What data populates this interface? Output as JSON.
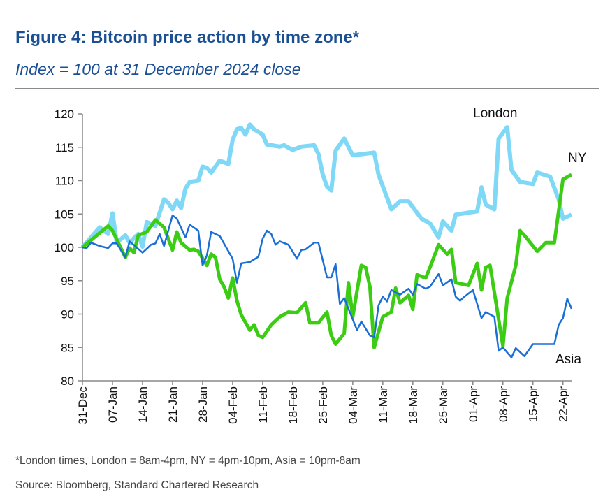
{
  "header": {
    "title": "Figure 4: Bitcoin price action by time zone*",
    "subtitle": "Index = 100 at 31 December 2024 close"
  },
  "footer": {
    "note": "*London times, London = 8am-4pm, NY = 4pm-10pm, Asia = 10pm-8am",
    "source": "Source: Bloomberg, Standard Chartered Research"
  },
  "chart_data": {
    "type": "line",
    "title": "Figure 4: Bitcoin price action by time zone*",
    "subtitle": "Index = 100 at 31 December 2024 close",
    "xlabel": "",
    "ylabel": "",
    "ylim": [
      80,
      120
    ],
    "yticks": [
      80,
      85,
      90,
      95,
      100,
      105,
      110,
      115,
      120
    ],
    "xlim": [
      "2024-12-31",
      "2025-04-24"
    ],
    "xticks": [
      "2024-12-31",
      "2025-01-07",
      "2025-01-14",
      "2025-01-21",
      "2025-01-28",
      "2025-02-04",
      "2025-02-11",
      "2025-02-18",
      "2025-02-25",
      "2025-03-04",
      "2025-03-11",
      "2025-03-18",
      "2025-03-25",
      "2025-04-01",
      "2025-04-08",
      "2025-04-15",
      "2025-04-22"
    ],
    "xtick_labels": [
      "31-Dec",
      "07-Jan",
      "14-Jan",
      "21-Jan",
      "28-Jan",
      "04-Feb",
      "11-Feb",
      "18-Feb",
      "25-Feb",
      "04-Mar",
      "11-Mar",
      "18-Mar",
      "25-Mar",
      "01-Apr",
      "08-Apr",
      "15-Apr",
      "22-Apr"
    ],
    "grid": false,
    "legend": "inline labels",
    "series": [
      {
        "name": "London",
        "color": "#7fd8f6",
        "points": [
          [
            "2024-12-31",
            100
          ],
          [
            "2025-01-04",
            103
          ],
          [
            "2025-01-06",
            102
          ],
          [
            "2025-01-07",
            105.1
          ],
          [
            "2025-01-08",
            100.7
          ],
          [
            "2025-01-10",
            101.8
          ],
          [
            "2025-01-11",
            100.7
          ],
          [
            "2025-01-13",
            102
          ],
          [
            "2025-01-14",
            100.1
          ],
          [
            "2025-01-15",
            103.8
          ],
          [
            "2025-01-17",
            103.2
          ],
          [
            "2025-01-19",
            107.2
          ],
          [
            "2025-01-20",
            106.7
          ],
          [
            "2025-01-21",
            105.7
          ],
          [
            "2025-01-22",
            107
          ],
          [
            "2025-01-23",
            105.9
          ],
          [
            "2025-01-24",
            108.8
          ],
          [
            "2025-01-25",
            109.8
          ],
          [
            "2025-01-27",
            110
          ],
          [
            "2025-01-28",
            112.1
          ],
          [
            "2025-01-29",
            111.9
          ],
          [
            "2025-01-30",
            111.2
          ],
          [
            "2025-02-01",
            113
          ],
          [
            "2025-02-03",
            112.5
          ],
          [
            "2025-02-04",
            116.1
          ],
          [
            "2025-02-05",
            117.7
          ],
          [
            "2025-02-06",
            117.9
          ],
          [
            "2025-02-07",
            116.9
          ],
          [
            "2025-02-08",
            118.4
          ],
          [
            "2025-02-09",
            117.7
          ],
          [
            "2025-02-11",
            116.9
          ],
          [
            "2025-02-12",
            115.4
          ],
          [
            "2025-02-15",
            115.1
          ],
          [
            "2025-02-16",
            115.3
          ],
          [
            "2025-02-18",
            114.6
          ],
          [
            "2025-02-20",
            115.1
          ],
          [
            "2025-02-23",
            115.3
          ],
          [
            "2025-02-24",
            114
          ],
          [
            "2025-02-25",
            110.9
          ],
          [
            "2025-02-26",
            109.1
          ],
          [
            "2025-02-27",
            108.5
          ],
          [
            "2025-02-28",
            114.5
          ],
          [
            "2025-03-02",
            116.3
          ],
          [
            "2025-03-04",
            113.8
          ],
          [
            "2025-03-09",
            114.2
          ],
          [
            "2025-03-10",
            110.9
          ],
          [
            "2025-03-13",
            105.7
          ],
          [
            "2025-03-15",
            106.9
          ],
          [
            "2025-03-17",
            106.9
          ],
          [
            "2025-03-20",
            104.3
          ],
          [
            "2025-03-22",
            103.6
          ],
          [
            "2025-03-24",
            101.5
          ],
          [
            "2025-03-25",
            103.9
          ],
          [
            "2025-03-27",
            102.5
          ],
          [
            "2025-03-28",
            104.9
          ],
          [
            "2025-04-02",
            105.4
          ],
          [
            "2025-04-03",
            109
          ],
          [
            "2025-04-04",
            106.4
          ],
          [
            "2025-04-06",
            105.7
          ],
          [
            "2025-04-07",
            116.3
          ],
          [
            "2025-04-09",
            118
          ],
          [
            "2025-04-10",
            111.6
          ],
          [
            "2025-04-12",
            109.8
          ],
          [
            "2025-04-15",
            109.5
          ],
          [
            "2025-04-16",
            111.2
          ],
          [
            "2025-04-19",
            110.6
          ],
          [
            "2025-04-21",
            107.2
          ],
          [
            "2025-04-22",
            104.3
          ],
          [
            "2025-04-24",
            104.9
          ]
        ]
      },
      {
        "name": "NY",
        "color": "#3ccc14",
        "points": [
          [
            "2024-12-31",
            100
          ],
          [
            "2025-01-06",
            103.2
          ],
          [
            "2025-01-07",
            102.5
          ],
          [
            "2025-01-10",
            98.5
          ],
          [
            "2025-01-11",
            99.9
          ],
          [
            "2025-01-12",
            99.2
          ],
          [
            "2025-01-13",
            101.8
          ],
          [
            "2025-01-15",
            102.3
          ],
          [
            "2025-01-17",
            104.1
          ],
          [
            "2025-01-19",
            103
          ],
          [
            "2025-01-21",
            99.6
          ],
          [
            "2025-01-22",
            102.3
          ],
          [
            "2025-01-23",
            100.7
          ],
          [
            "2025-01-25",
            99.6
          ],
          [
            "2025-01-26",
            99.7
          ],
          [
            "2025-01-27",
            99.4
          ],
          [
            "2025-01-29",
            97.3
          ],
          [
            "2025-01-30",
            99
          ],
          [
            "2025-01-31",
            98.5
          ],
          [
            "2025-02-01",
            95.2
          ],
          [
            "2025-02-02",
            94.1
          ],
          [
            "2025-02-03",
            92.4
          ],
          [
            "2025-02-04",
            95.4
          ],
          [
            "2025-02-05",
            92
          ],
          [
            "2025-02-06",
            89.9
          ],
          [
            "2025-02-08",
            87.6
          ],
          [
            "2025-02-09",
            88.4
          ],
          [
            "2025-02-10",
            86.8
          ],
          [
            "2025-02-11",
            86.5
          ],
          [
            "2025-02-13",
            88.4
          ],
          [
            "2025-02-15",
            89.6
          ],
          [
            "2025-02-17",
            90.3
          ],
          [
            "2025-02-19",
            90.2
          ],
          [
            "2025-02-21",
            91.7
          ],
          [
            "2025-02-22",
            88.7
          ],
          [
            "2025-02-24",
            88.7
          ],
          [
            "2025-02-26",
            90.3
          ],
          [
            "2025-02-27",
            86.8
          ],
          [
            "2025-02-28",
            85.5
          ],
          [
            "2025-03-02",
            87.1
          ],
          [
            "2025-03-03",
            94.7
          ],
          [
            "2025-03-04",
            89.6
          ],
          [
            "2025-03-06",
            97.3
          ],
          [
            "2025-03-07",
            97
          ],
          [
            "2025-03-08",
            94.1
          ],
          [
            "2025-03-09",
            85
          ],
          [
            "2025-03-11",
            89.6
          ],
          [
            "2025-03-13",
            90.3
          ],
          [
            "2025-03-14",
            93.9
          ],
          [
            "2025-03-15",
            91.7
          ],
          [
            "2025-03-17",
            92.8
          ],
          [
            "2025-03-18",
            90.7
          ],
          [
            "2025-03-19",
            95.9
          ],
          [
            "2025-03-21",
            95.4
          ],
          [
            "2025-03-22",
            97
          ],
          [
            "2025-03-24",
            100.4
          ],
          [
            "2025-03-26",
            99
          ],
          [
            "2025-03-27",
            99.7
          ],
          [
            "2025-03-28",
            94.7
          ],
          [
            "2025-03-31",
            94.3
          ],
          [
            "2025-04-02",
            97.6
          ],
          [
            "2025-04-03",
            93.6
          ],
          [
            "2025-04-04",
            97
          ],
          [
            "2025-04-05",
            97.3
          ],
          [
            "2025-04-08",
            85.2
          ],
          [
            "2025-04-09",
            92.4
          ],
          [
            "2025-04-11",
            97.3
          ],
          [
            "2025-04-12",
            102.5
          ],
          [
            "2025-04-13",
            101.8
          ],
          [
            "2025-04-16",
            99.4
          ],
          [
            "2025-04-18",
            100.7
          ],
          [
            "2025-04-20",
            100.7
          ],
          [
            "2025-04-22",
            110.2
          ],
          [
            "2025-04-24",
            110.9
          ]
        ]
      },
      {
        "name": "Asia",
        "color": "#1a6fd6",
        "points": [
          [
            "2024-12-31",
            100
          ],
          [
            "2025-01-01",
            99.9
          ],
          [
            "2025-01-02",
            100.7
          ],
          [
            "2025-01-04",
            100.2
          ],
          [
            "2025-01-06",
            99.9
          ],
          [
            "2025-01-07",
            100.6
          ],
          [
            "2025-01-08",
            100.6
          ],
          [
            "2025-01-10",
            98.5
          ],
          [
            "2025-01-11",
            100.9
          ],
          [
            "2025-01-14",
            99.2
          ],
          [
            "2025-01-16",
            100.4
          ],
          [
            "2025-01-17",
            100.6
          ],
          [
            "2025-01-18",
            102
          ],
          [
            "2025-01-19",
            100.2
          ],
          [
            "2025-01-21",
            104.8
          ],
          [
            "2025-01-22",
            104.3
          ],
          [
            "2025-01-24",
            101.5
          ],
          [
            "2025-01-25",
            103.4
          ],
          [
            "2025-01-27",
            102.5
          ],
          [
            "2025-01-28",
            97.3
          ],
          [
            "2025-01-29",
            98.8
          ],
          [
            "2025-01-30",
            102.3
          ],
          [
            "2025-02-01",
            101.7
          ],
          [
            "2025-02-04",
            98.3
          ],
          [
            "2025-02-05",
            94.7
          ],
          [
            "2025-02-06",
            97.6
          ],
          [
            "2025-02-08",
            97.8
          ],
          [
            "2025-02-10",
            98.6
          ],
          [
            "2025-02-11",
            101.3
          ],
          [
            "2025-02-12",
            102.5
          ],
          [
            "2025-02-13",
            102
          ],
          [
            "2025-02-14",
            100.4
          ],
          [
            "2025-02-15",
            100.9
          ],
          [
            "2025-02-17",
            100.4
          ],
          [
            "2025-02-19",
            98.3
          ],
          [
            "2025-02-20",
            99.6
          ],
          [
            "2025-02-21",
            99.7
          ],
          [
            "2025-02-23",
            100.7
          ],
          [
            "2025-02-24",
            100.7
          ],
          [
            "2025-02-26",
            95.5
          ],
          [
            "2025-02-27",
            95.5
          ],
          [
            "2025-02-28",
            97.5
          ],
          [
            "2025-03-01",
            91.5
          ],
          [
            "2025-03-02",
            92.4
          ],
          [
            "2025-03-05",
            87.6
          ],
          [
            "2025-03-06",
            88.9
          ],
          [
            "2025-03-08",
            86.8
          ],
          [
            "2025-03-09",
            86.5
          ],
          [
            "2025-03-10",
            91.3
          ],
          [
            "2025-03-11",
            92.6
          ],
          [
            "2025-03-12",
            91.9
          ],
          [
            "2025-03-13",
            93.6
          ],
          [
            "2025-03-15",
            92.9
          ],
          [
            "2025-03-17",
            93.8
          ],
          [
            "2025-03-18",
            92.9
          ],
          [
            "2025-03-19",
            94.5
          ],
          [
            "2025-03-21",
            93.8
          ],
          [
            "2025-03-22",
            94.1
          ],
          [
            "2025-03-24",
            96
          ],
          [
            "2025-03-25",
            94.3
          ],
          [
            "2025-03-27",
            95.2
          ],
          [
            "2025-03-28",
            92.6
          ],
          [
            "2025-03-29",
            92
          ],
          [
            "2025-03-30",
            92.6
          ],
          [
            "2025-04-01",
            93.6
          ],
          [
            "2025-04-03",
            89.4
          ],
          [
            "2025-04-04",
            90.3
          ],
          [
            "2025-04-06",
            89.6
          ],
          [
            "2025-04-07",
            84.5
          ],
          [
            "2025-04-08",
            85
          ],
          [
            "2025-04-10",
            83.5
          ],
          [
            "2025-04-11",
            84.9
          ],
          [
            "2025-04-13",
            83.7
          ],
          [
            "2025-04-15",
            85.5
          ],
          [
            "2025-04-17",
            85.5
          ],
          [
            "2025-04-20",
            85.5
          ],
          [
            "2025-04-21",
            88.4
          ],
          [
            "2025-04-22",
            89.4
          ],
          [
            "2025-04-23",
            92.3
          ],
          [
            "2025-04-24",
            90.8
          ]
        ]
      }
    ]
  }
}
